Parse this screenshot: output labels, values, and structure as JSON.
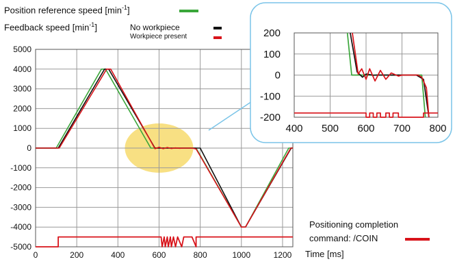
{
  "legend": {
    "ref_label_main": "Position reference speed [min",
    "ref_label_sup": "-1",
    "ref_label_end": "]",
    "fb_label_main": "Feedback speed [min",
    "fb_label_sup": "-1",
    "fb_label_end": "]",
    "no_workpiece": "No workpiece",
    "workpiece_present": "Workpiece present",
    "coin_line1": "Positioning completion",
    "coin_line2": "command: /COIN",
    "x_axis_label": "Time [ms]"
  },
  "colors": {
    "reference": "#3aa63a",
    "no_workpiece": "#111111",
    "workpiece_present": "#d8131a",
    "highlight": "#f5d65a",
    "inset_border": "#7ac4e8"
  },
  "chart_data": [
    {
      "type": "line",
      "title": "",
      "xlabel": "Time [ms]",
      "ylabel": "",
      "xlim": [
        0,
        1250
      ],
      "ylim": [
        -5000,
        5000
      ],
      "x_ticks": [
        "0",
        "200",
        "400",
        "600",
        "800",
        "1000",
        "1200"
      ],
      "y_ticks": [
        "5000",
        "4000",
        "3000",
        "2000",
        "1000",
        "0",
        "-1000",
        "-2000",
        "-3000",
        "-4000",
        "-5000"
      ],
      "grid": true,
      "series": [
        {
          "name": "Position reference speed [min-1]",
          "color": "#3aa63a",
          "x": [
            0,
            100,
            320,
            340,
            560,
            570,
            780,
            1000,
            1020,
            1230,
            1250
          ],
          "y": [
            0,
            0,
            4000,
            4000,
            0,
            0,
            0,
            -4000,
            -4000,
            0,
            0
          ]
        },
        {
          "name": "No workpiece",
          "color": "#111111",
          "x": [
            0,
            110,
            335,
            355,
            580,
            600,
            800,
            1000,
            1020,
            1242,
            1250
          ],
          "y": [
            0,
            0,
            4000,
            4000,
            0,
            0,
            0,
            -4000,
            -4000,
            0,
            0
          ]
        },
        {
          "name": "Workpiece present",
          "color": "#d8131a",
          "x": [
            0,
            115,
            345,
            365,
            580,
            600,
            620,
            640,
            660,
            680,
            700,
            720,
            760,
            780,
            800,
            1000,
            1020,
            1240,
            1250
          ],
          "y": [
            0,
            0,
            4000,
            4000,
            -30,
            40,
            -30,
            30,
            -20,
            10,
            -10,
            0,
            0,
            -50,
            -400,
            -4000,
            -4000,
            0,
            0
          ]
        },
        {
          "name": "Positioning completion command: /COIN",
          "color": "#d8131a",
          "step": true,
          "x": [
            0,
            110,
            110,
            610,
            615,
            625,
            630,
            640,
            645,
            655,
            660,
            670,
            680,
            690,
            710,
            720,
            760,
            780,
            780,
            1250
          ],
          "y": [
            -5000,
            -5000,
            -4500,
            -4500,
            -5000,
            -4500,
            -5000,
            -4500,
            -5000,
            -4500,
            -5000,
            -4500,
            -5000,
            -4500,
            -5000,
            -4500,
            -4500,
            -5000,
            -4500,
            -4500
          ]
        }
      ]
    },
    {
      "type": "line",
      "title": "",
      "xlim": [
        400,
        800
      ],
      "ylim": [
        -200,
        200
      ],
      "x_ticks": [
        "400",
        "500",
        "600",
        "700",
        "800"
      ],
      "y_ticks": [
        "200",
        "100",
        "0",
        "-100",
        "-200"
      ],
      "grid": true,
      "series": [
        {
          "name": "Position reference speed",
          "color": "#3aa63a",
          "x": [
            548,
            560,
            565,
            755,
            765
          ],
          "y": [
            200,
            0,
            0,
            0,
            -200
          ]
        },
        {
          "name": "No workpiece",
          "color": "#111111",
          "x": [
            556,
            575,
            590,
            600,
            610,
            620,
            630,
            740,
            760,
            775
          ],
          "y": [
            200,
            15,
            -10,
            5,
            2,
            -1,
            0,
            0,
            -20,
            -200
          ]
        },
        {
          "name": "Workpiece present",
          "color": "#d8131a",
          "x": [
            562,
            578,
            588,
            600,
            610,
            625,
            640,
            655,
            670,
            690,
            700,
            745,
            755,
            768,
            775
          ],
          "y": [
            200,
            5,
            30,
            -20,
            30,
            -28,
            22,
            -20,
            10,
            -5,
            0,
            0,
            -10,
            -60,
            -200
          ]
        },
        {
          "name": "/COIN",
          "color": "#d8131a",
          "step": true,
          "x": [
            400,
            600,
            600,
            610,
            610,
            620,
            620,
            630,
            630,
            640,
            640,
            655,
            655,
            665,
            665,
            675,
            675,
            690,
            690,
            760,
            760,
            800
          ],
          "y": [
            -180,
            -180,
            -200,
            -200,
            -180,
            -180,
            -200,
            -200,
            -180,
            -180,
            -200,
            -200,
            -180,
            -180,
            -200,
            -200,
            -180,
            -180,
            -200,
            -200,
            -180,
            -180
          ]
        }
      ]
    }
  ]
}
